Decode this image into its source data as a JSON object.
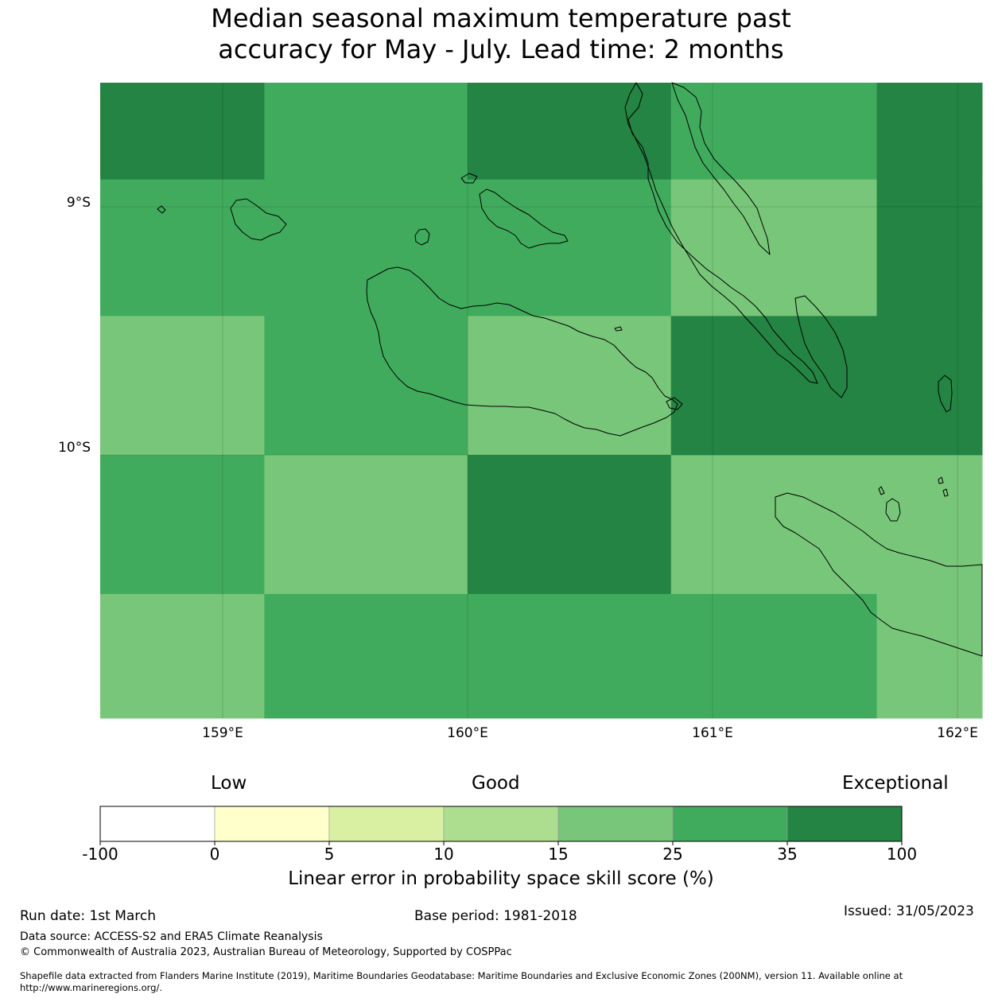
{
  "title_line1": "Median seasonal maximum temperature past",
  "title_line2": "accuracy for May - July. Lead time: 2 months",
  "map": {
    "lat_labels": [
      "9°S",
      "10°S"
    ],
    "lon_labels": [
      "159°E",
      "160°E",
      "161°E",
      "162°E"
    ],
    "lon_range": [
      158.5,
      162.1
    ],
    "lat_range": [
      -11.06,
      -8.5
    ],
    "grid_lons": [
      159,
      160,
      161,
      162
    ],
    "grid_lats": [
      -9,
      -10
    ],
    "cell_lon_edges": [
      158.5,
      159.17,
      160.0,
      160.83,
      161.67,
      162.1
    ],
    "cell_lat_edges": [
      -8.5,
      -8.89,
      -9.44,
      -10.0,
      -10.56,
      -11.06
    ],
    "cell_categories": [
      [
        6,
        5,
        6,
        5,
        6
      ],
      [
        5,
        5,
        5,
        4,
        6
      ],
      [
        4,
        5,
        4,
        6,
        6
      ],
      [
        5,
        4,
        6,
        4,
        4
      ],
      [
        4,
        5,
        5,
        5,
        4
      ]
    ]
  },
  "colorbar": {
    "category_labels": [
      "Low",
      "Good",
      "Exceptional"
    ],
    "colors": [
      "#ffffff",
      "#ffffcc",
      "#d9f0a3",
      "#addd8e",
      "#78c679",
      "#41ab5d",
      "#238443"
    ],
    "tick_labels": [
      "-100",
      "0",
      "5",
      "10",
      "15",
      "25",
      "35",
      "100"
    ],
    "title": "Linear error in probability space skill score (%)"
  },
  "footer": {
    "run_date": "Run date: 1st March",
    "base_period": "Base period: 1981-2018",
    "issued": "Issued: 31/05/2023",
    "data_source": "Data source: ACCESS-S2 and ERA5 Climate Reanalysis",
    "copyright": "© Commonwealth of Australia 2023, Australian Bureau of Meteorology, Supported by COSPPac",
    "shapefile_line1": "Shapefile data extracted from Flanders Marine Institute (2019), Maritime Boundaries Geodatabase: Maritime Boundaries and Exclusive Economic Zones (200NM), version 11. Available online at",
    "shapefile_line2": "http://www.marineregions.org/."
  }
}
